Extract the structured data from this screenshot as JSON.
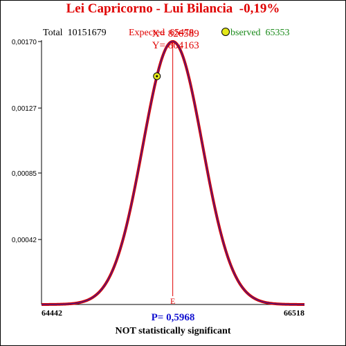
{
  "header": {
    "title": "Lei Capricorno - Lui Bilancia  -0,19%",
    "x_text": "X= 826589",
    "y_text": "Y= 804163",
    "total_text": "Total  10151679",
    "expected_text": "Expected  65478",
    "observed_text": "bserved  65353"
  },
  "footer": {
    "p_text": "P= 0,5968",
    "verdict": "NOT statistically significant"
  },
  "colors": {
    "title": "#e00000",
    "curve": "#d40000",
    "curve_inner": "#3020a0",
    "expected_line": "#e00000",
    "observed_text": "#1a8a1a",
    "p_text": "#1010d0",
    "marker": "#e4e81a"
  },
  "chart_data": {
    "type": "line",
    "title": "Lei Capricorno - Lui Bilancia  -0,19%",
    "x_range": [
      64442,
      66518
    ],
    "x_tick_labels": [
      "64442",
      "66518"
    ],
    "y_range": [
      0,
      0.0017
    ],
    "y_ticks": [
      0.00042,
      0.00085,
      0.00127,
      0.0017
    ],
    "y_tick_labels": [
      "0,00042",
      "0,00085",
      "0,00127",
      "0,00170"
    ],
    "distribution": {
      "mean": 65478,
      "sd": 235
    },
    "expected": 65478,
    "expected_label": "E",
    "observed": 65353,
    "grid": false
  }
}
